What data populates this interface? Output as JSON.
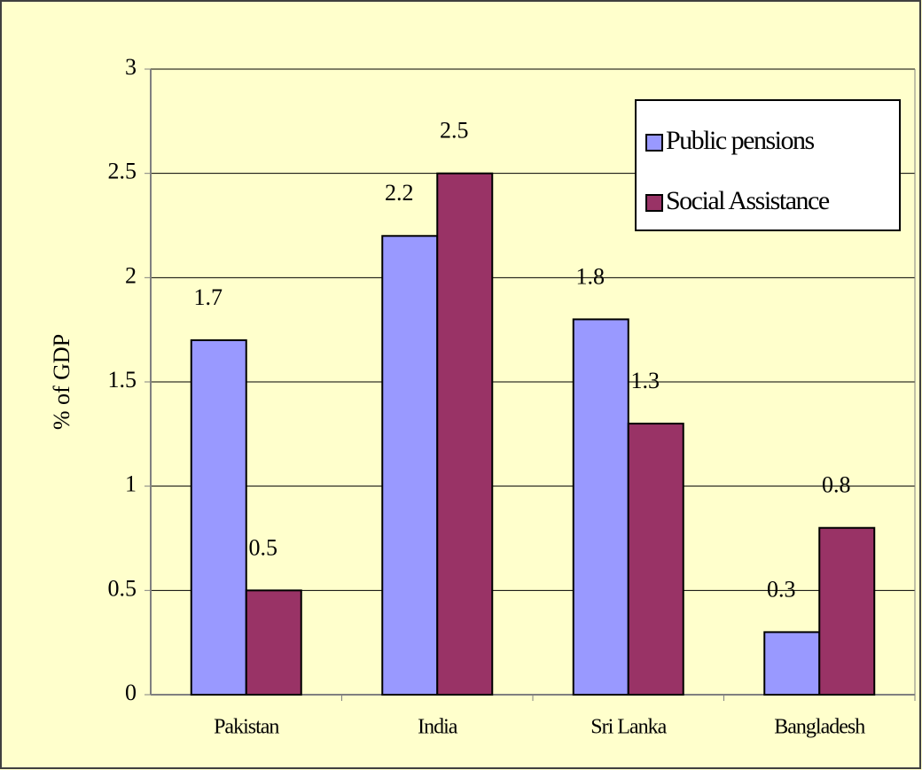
{
  "chart_data": {
    "type": "bar",
    "categories": [
      "Pakistan",
      "India",
      "Sri Lanka",
      "Bangladesh"
    ],
    "series": [
      {
        "name": "Public pensions",
        "color": "#9999ff",
        "values": [
          1.7,
          2.2,
          1.8,
          0.3
        ]
      },
      {
        "name": "Social Assistance",
        "color": "#993366",
        "values": [
          0.5,
          2.5,
          1.3,
          0.8
        ]
      }
    ],
    "y_label": "% of GDP",
    "ylim": [
      0,
      3
    ],
    "yticks": [
      0,
      0.5,
      1,
      1.5,
      2,
      2.5,
      3
    ],
    "grid": true,
    "legend": "upper right"
  }
}
